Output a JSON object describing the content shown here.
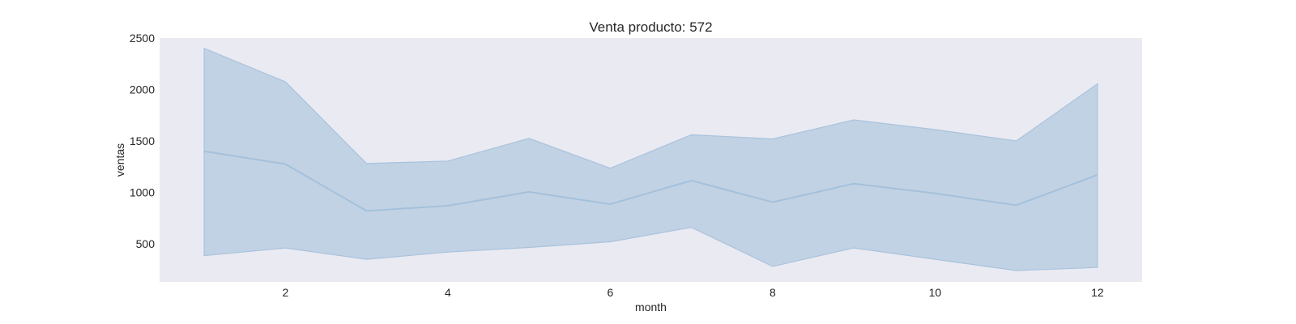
{
  "chart_data": {
    "type": "line",
    "title": "Venta producto: 572",
    "xlabel": "month",
    "ylabel": "ventas",
    "xlim": [
      0.45,
      12.55
    ],
    "ylim": [
      130,
      2500
    ],
    "x_ticks": [
      2,
      4,
      6,
      8,
      10,
      12
    ],
    "y_ticks": [
      500,
      1000,
      1500,
      2000,
      2500
    ],
    "grid": false,
    "legend": "none",
    "colors": {
      "plot_background": "#eaeaf2",
      "line": "#a4c1dc",
      "band_fill": "#c1d2e4",
      "band_edge": "#a9c3dd"
    },
    "x": [
      1,
      2,
      3,
      4,
      5,
      6,
      7,
      8,
      9,
      10,
      11,
      12
    ],
    "series": [
      {
        "values": [
          1400,
          1275,
          820,
          870,
          1005,
          885,
          1115,
          905,
          1085,
          990,
          875,
          1170
        ],
        "band_upper": [
          2400,
          2075,
          1280,
          1305,
          1525,
          1235,
          1560,
          1520,
          1705,
          1610,
          1500,
          2055
        ],
        "band_lower": [
          385,
          460,
          350,
          420,
          465,
          520,
          660,
          280,
          460,
          350,
          240,
          270
        ]
      }
    ]
  }
}
